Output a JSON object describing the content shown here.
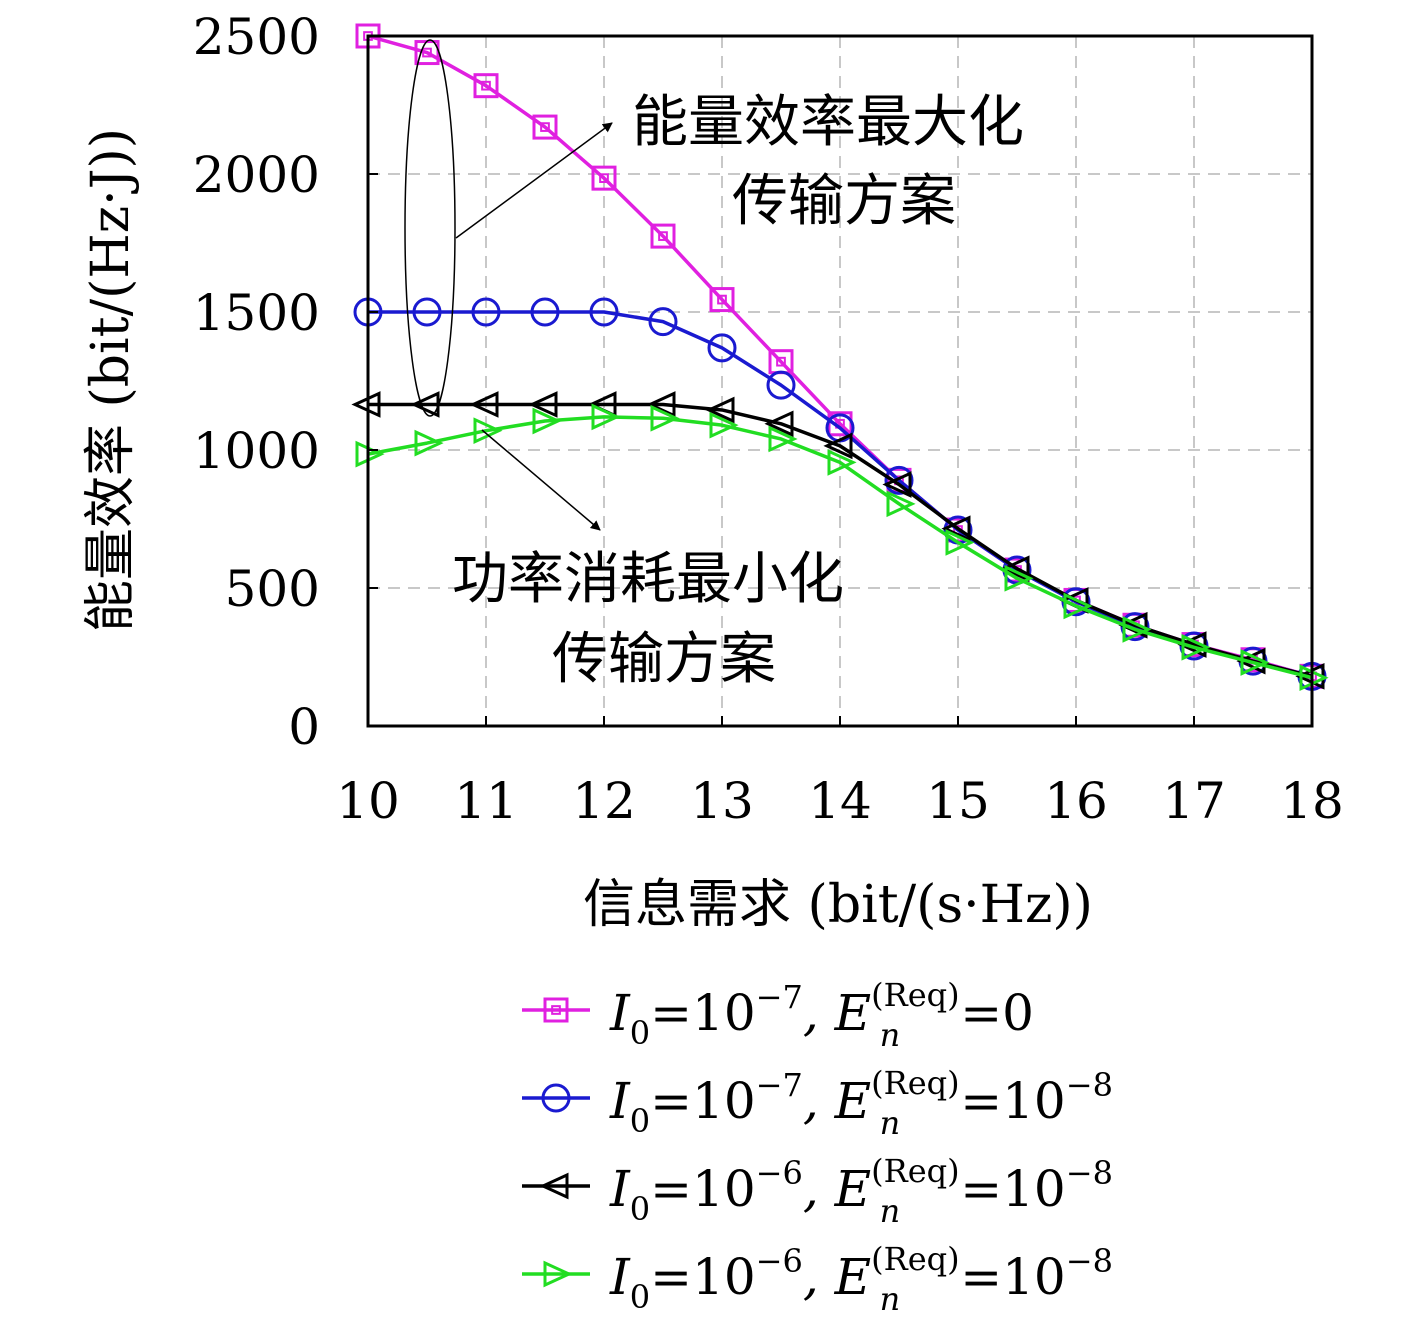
{
  "chart_data": {
    "type": "line",
    "xlabel": "信息需求 (bit/(s·Hz))",
    "ylabel": "能量效率 (bit/(Hz·J))",
    "xlim": [
      10,
      18
    ],
    "ylim": [
      0,
      2500
    ],
    "x_ticks": [
      "10",
      "11",
      "12",
      "13",
      "14",
      "15",
      "16",
      "17",
      "18"
    ],
    "y_ticks": [
      "0",
      "500",
      "1000",
      "1500",
      "2000",
      "2500"
    ],
    "grid": true,
    "x": [
      10,
      10.5,
      11,
      11.5,
      12,
      12.5,
      13,
      13.5,
      14,
      14.5,
      15,
      15.5,
      16,
      16.5,
      17,
      17.5,
      18
    ],
    "series": [
      {
        "color": "#e020e0",
        "marker": "square",
        "legend": {
          "lhs": "I",
          "lhs_sub": "0",
          "eq1": "=10",
          "exp1": "−7",
          "mid": ", E",
          "e_sup": "(Req)",
          "e_sub": "n",
          "eq2": "=0",
          "exp2": ""
        },
        "values": [
          2500,
          2440,
          2320,
          2170,
          1985,
          1775,
          1545,
          1320,
          1095,
          890,
          710,
          565,
          455,
          365,
          295,
          240,
          180
        ]
      },
      {
        "color": "#1a1ad0",
        "marker": "circle",
        "legend": {
          "lhs": "I",
          "lhs_sub": "0",
          "eq1": "=10",
          "exp1": "−7",
          "mid": ", E",
          "e_sup": "(Req)",
          "e_sub": "n",
          "eq2": "=10",
          "exp2": "−8"
        },
        "values": [
          1500,
          1500,
          1500,
          1500,
          1500,
          1465,
          1370,
          1235,
          1080,
          890,
          710,
          565,
          450,
          360,
          290,
          235,
          180
        ]
      },
      {
        "color": "#000000",
        "marker": "triangle-left",
        "legend": {
          "lhs": "I",
          "lhs_sub": "0",
          "eq1": "=10",
          "exp1": "−6",
          "mid": ", E",
          "e_sup": "(Req)",
          "e_sub": "n",
          "eq2": "=10",
          "exp2": "−8"
        },
        "values": [
          1165,
          1165,
          1165,
          1165,
          1165,
          1165,
          1145,
          1095,
          1015,
          875,
          715,
          570,
          455,
          365,
          295,
          235,
          180
        ]
      },
      {
        "color": "#22dd22",
        "marker": "triangle-right",
        "legend": {
          "lhs": "I",
          "lhs_sub": "0",
          "eq1": "=10",
          "exp1": "−6",
          "mid": ", E",
          "e_sup": "(Req)",
          "e_sub": "n",
          "eq2": "=10",
          "exp2": "−8"
        },
        "values": [
          985,
          1025,
          1070,
          1105,
          1120,
          1115,
          1090,
          1040,
          955,
          805,
          665,
          535,
          435,
          350,
          285,
          230,
          175
        ]
      }
    ],
    "annotations": [
      {
        "lines": [
          "能量效率最大化",
          "传输方案"
        ]
      },
      {
        "lines": [
          "功率消耗最小化",
          "传输方案"
        ]
      }
    ]
  }
}
